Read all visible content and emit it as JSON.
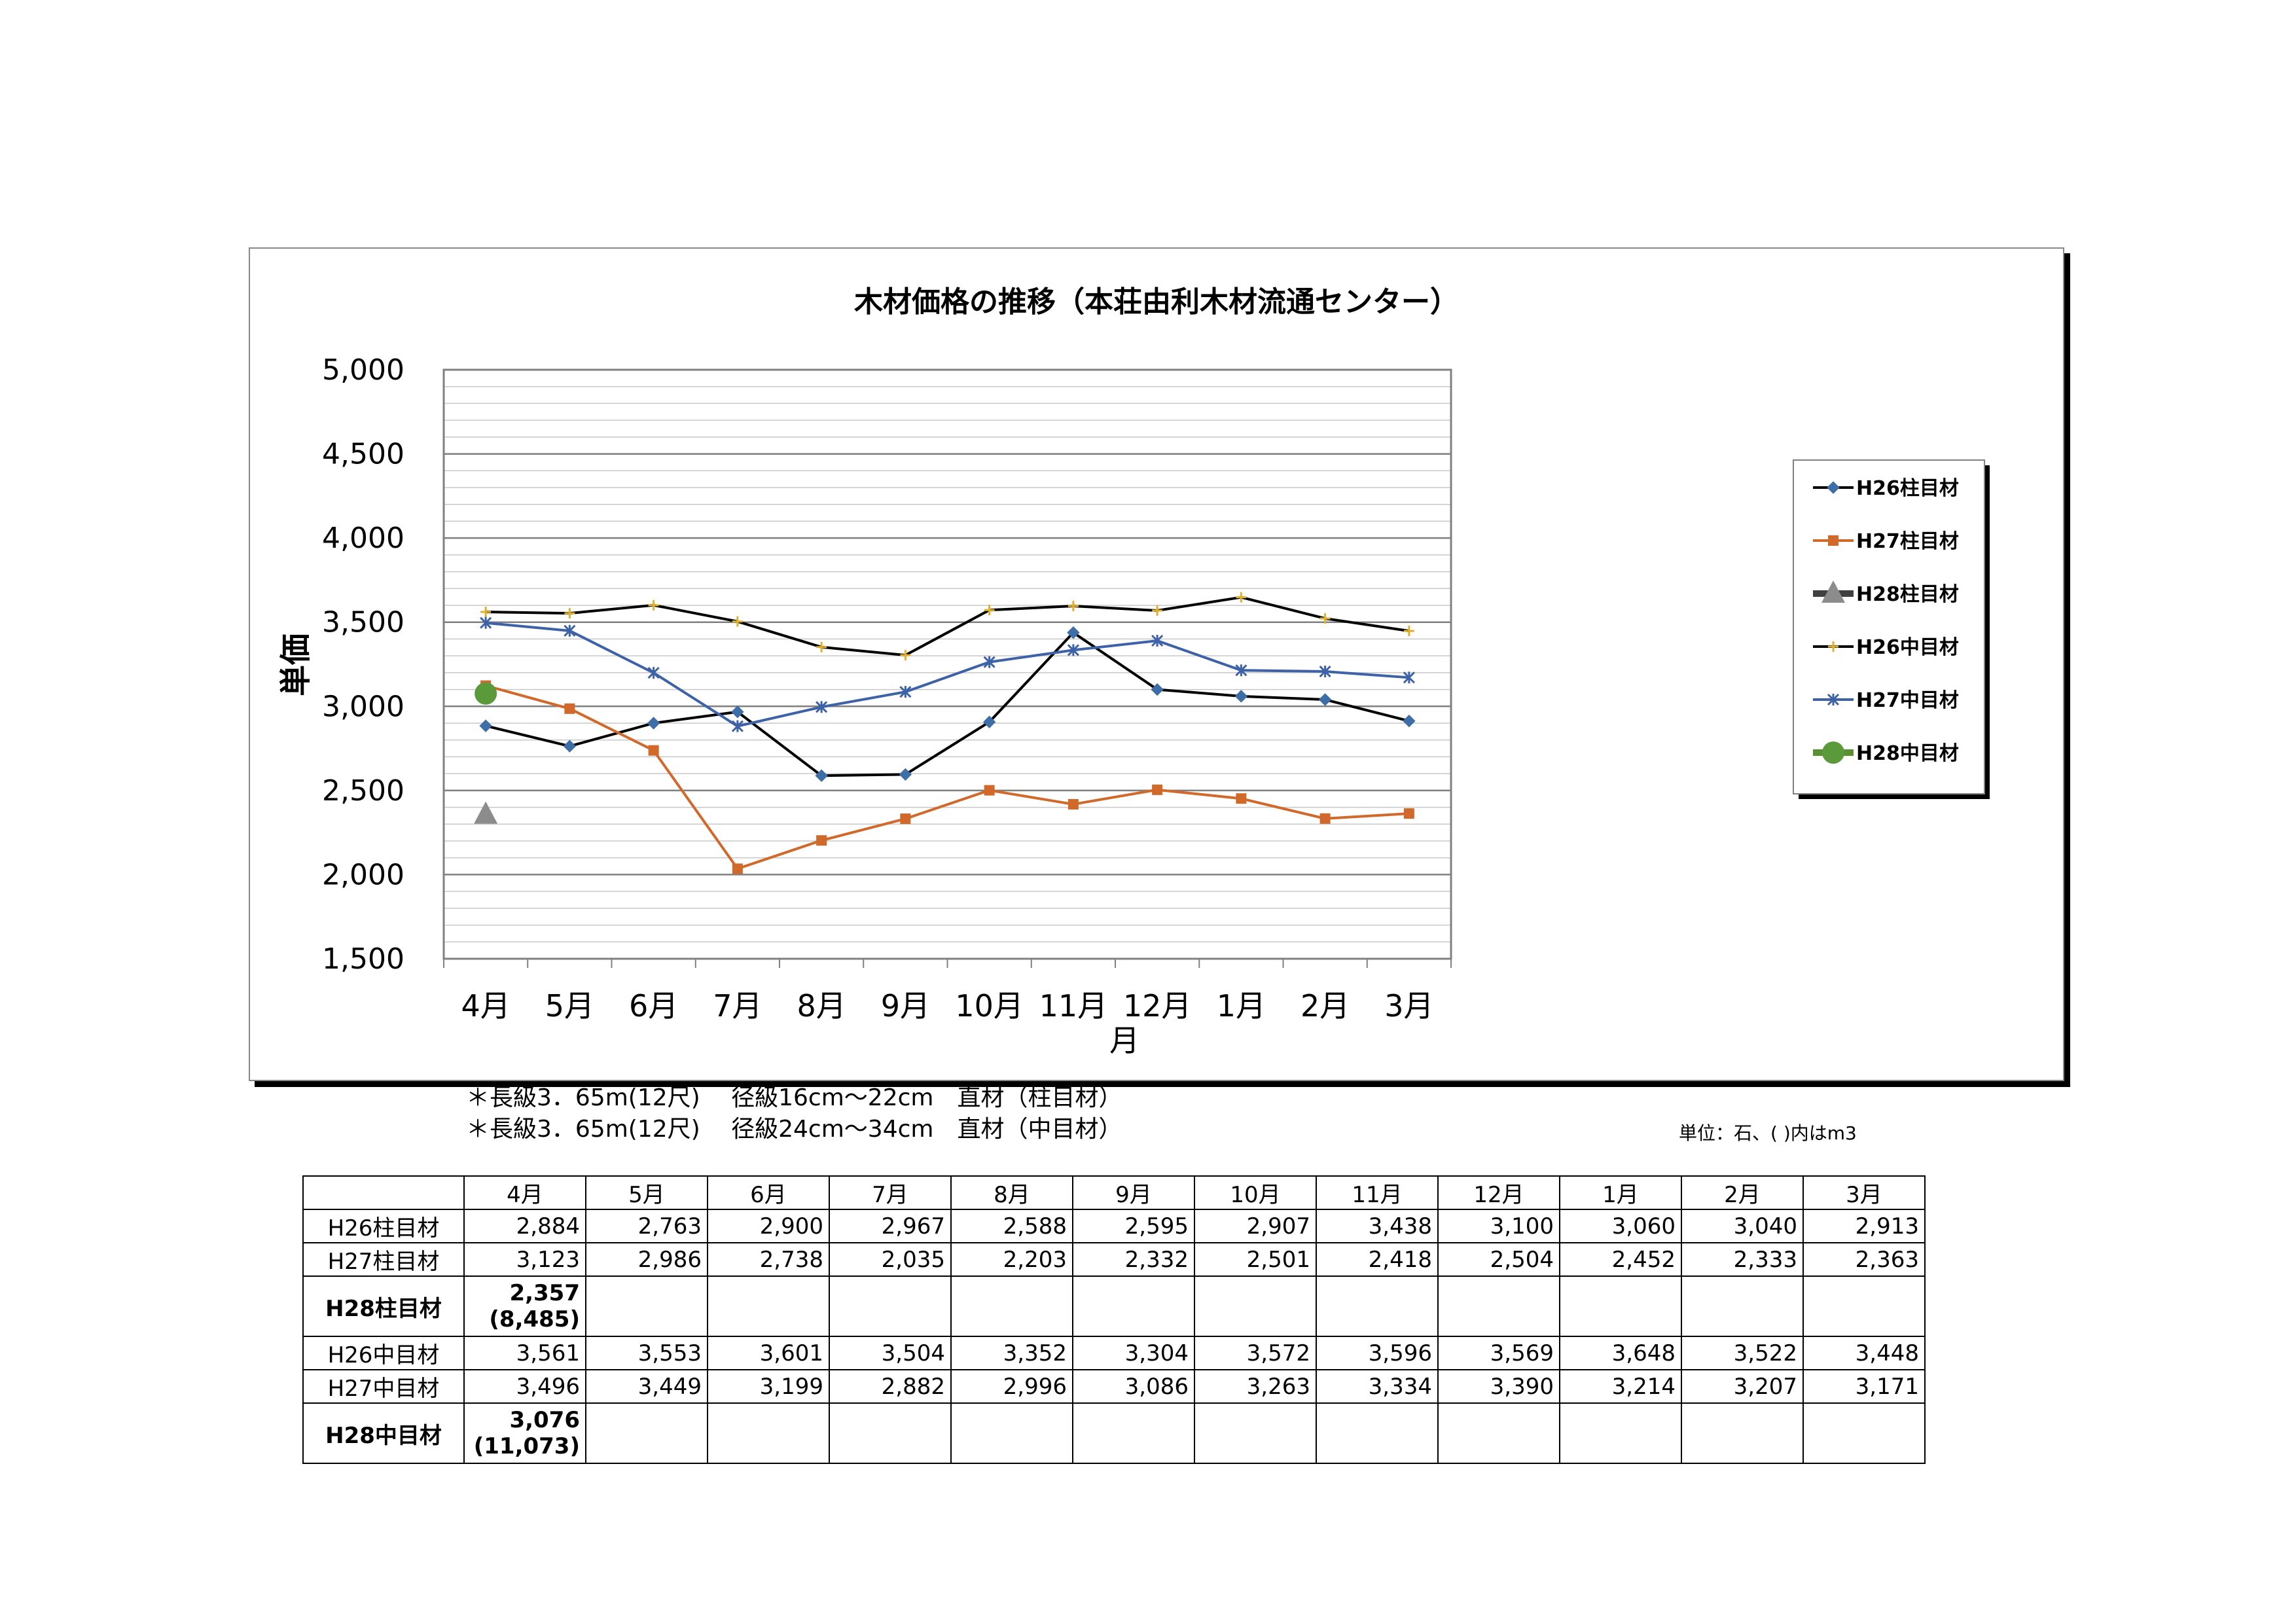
{
  "chart_data": {
    "type": "line",
    "title": "木材価格の推移（本荘由利木材流通センター）",
    "xlabel": "月",
    "ylabel": "単価",
    "categories": [
      "4月",
      "5月",
      "6月",
      "7月",
      "8月",
      "9月",
      "10月",
      "11月",
      "12月",
      "1月",
      "2月",
      "3月"
    ],
    "ylim": [
      1500,
      5000
    ],
    "yticks": [
      "1,500",
      "2,000",
      "2,500",
      "3,000",
      "3,500",
      "4,000",
      "4,500",
      "5,000"
    ],
    "grid": true,
    "legend_position": "right",
    "series": [
      {
        "name": "H26柱目材",
        "values": [
          2884,
          2763,
          2900,
          2967,
          2588,
          2595,
          2907,
          3438,
          3100,
          3060,
          3040,
          2913
        ],
        "line_color": "#000000",
        "marker_color": "#3d6ea8",
        "marker": "diamond"
      },
      {
        "name": "H27柱目材",
        "values": [
          3123,
          2986,
          2738,
          2035,
          2203,
          2332,
          2501,
          2418,
          2504,
          2452,
          2333,
          2363
        ],
        "line_color": "#d0692a",
        "marker_color": "#d0692a",
        "marker": "square"
      },
      {
        "name": "H28柱目材",
        "values": [
          2357,
          null,
          null,
          null,
          null,
          null,
          null,
          null,
          null,
          null,
          null,
          null
        ],
        "line_color": "#404040",
        "marker_color": "#8c8c8c",
        "marker": "triangle"
      },
      {
        "name": "H26中目材",
        "values": [
          3561,
          3553,
          3601,
          3504,
          3352,
          3304,
          3572,
          3596,
          3569,
          3648,
          3522,
          3448
        ],
        "line_color": "#000000",
        "marker_color": "#e0b030",
        "marker": "star"
      },
      {
        "name": "H27中目材",
        "values": [
          3496,
          3449,
          3199,
          2882,
          2996,
          3086,
          3263,
          3334,
          3390,
          3214,
          3207,
          3171
        ],
        "line_color": "#3d62a8",
        "marker_color": "#3d62a8",
        "marker": "x"
      },
      {
        "name": "H28中目材",
        "values": [
          3076,
          null,
          null,
          null,
          null,
          null,
          null,
          null,
          null,
          null,
          null,
          null
        ],
        "line_color": "#5a8f32",
        "marker_color": "#5a9a3a",
        "marker": "circle"
      }
    ]
  },
  "notes": [
    "＊長級3．65m(12尺)　 径級16cm～22cm　直材（柱目材）",
    "＊長級3．65m(12尺)　 径級24cm～34cm　直材（中目材）"
  ],
  "unit_note": "単位：石、( )内はm3",
  "table": {
    "months": [
      "4月",
      "5月",
      "6月",
      "7月",
      "8月",
      "9月",
      "10月",
      "11月",
      "12月",
      "1月",
      "2月",
      "3月"
    ],
    "rows": [
      {
        "label": "H26柱目材",
        "bold": false,
        "cells": [
          "2,884",
          "2,763",
          "2,900",
          "2,967",
          "2,588",
          "2,595",
          "2,907",
          "3,438",
          "3,100",
          "3,060",
          "3,040",
          "2,913"
        ]
      },
      {
        "label": "H27柱目材",
        "bold": false,
        "cells": [
          "3,123",
          "2,986",
          "2,738",
          "2,035",
          "2,203",
          "2,332",
          "2,501",
          "2,418",
          "2,504",
          "2,452",
          "2,333",
          "2,363"
        ]
      },
      {
        "label": "H28柱目材",
        "bold": true,
        "cells": [
          "2,357",
          "",
          "",
          "",
          "",
          "",
          "",
          "",
          "",
          "",
          "",
          ""
        ],
        "sub": "(8,485)"
      },
      {
        "label": "H26中目材",
        "bold": false,
        "cells": [
          "3,561",
          "3,553",
          "3,601",
          "3,504",
          "3,352",
          "3,304",
          "3,572",
          "3,596",
          "3,569",
          "3,648",
          "3,522",
          "3,448"
        ]
      },
      {
        "label": "H27中目材",
        "bold": false,
        "cells": [
          "3,496",
          "3,449",
          "3,199",
          "2,882",
          "2,996",
          "3,086",
          "3,263",
          "3,334",
          "3,390",
          "3,214",
          "3,207",
          "3,171"
        ]
      },
      {
        "label": "H28中目材",
        "bold": true,
        "cells": [
          "3,076",
          "",
          "",
          "",
          "",
          "",
          "",
          "",
          "",
          "",
          "",
          ""
        ],
        "sub": "(11,073)"
      }
    ]
  }
}
